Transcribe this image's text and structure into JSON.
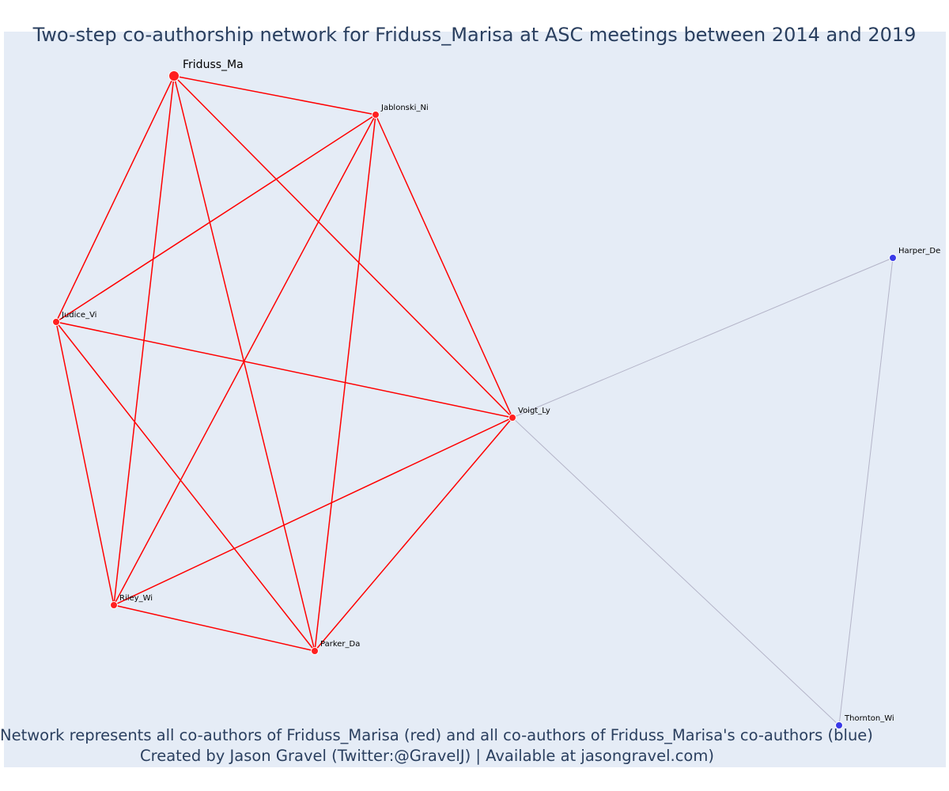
{
  "title": "Two-step co-authorship network for Friduss_Marisa at ASC meetings between 2014 and 2019",
  "caption": {
    "line1": "Network represents all co-authors of Friduss_Marisa (red) and all co-authors of Friduss_Marisa's co-authors (blue)",
    "line2": "Created by Jason Gravel (Twitter:@GravelJ) | Available at jasongravel.com)"
  },
  "colors": {
    "background": "#e5ecf6",
    "primary_edge": "#ff0000",
    "secondary_edge": "#b4b4c8",
    "primary_node": "#ff2020",
    "secondary_node": "#3a3ae8",
    "text": "#2a3f5f"
  },
  "nodes": [
    {
      "id": "Friduss_Ma",
      "group": "focal"
    },
    {
      "id": "Jablonski_Ni",
      "group": "coauthor"
    },
    {
      "id": "Judice_Vi",
      "group": "coauthor"
    },
    {
      "id": "Voigt_Ly",
      "group": "coauthor"
    },
    {
      "id": "Riley_Wi",
      "group": "coauthor"
    },
    {
      "id": "Parker_Da",
      "group": "coauthor"
    },
    {
      "id": "Harper_De",
      "group": "second_step"
    },
    {
      "id": "Thornton_Wi",
      "group": "second_step"
    }
  ],
  "edges": [
    {
      "source": "Friduss_Ma",
      "target": "Jablonski_Ni",
      "type": "primary"
    },
    {
      "source": "Friduss_Ma",
      "target": "Judice_Vi",
      "type": "primary"
    },
    {
      "source": "Friduss_Ma",
      "target": "Voigt_Ly",
      "type": "primary"
    },
    {
      "source": "Friduss_Ma",
      "target": "Riley_Wi",
      "type": "primary"
    },
    {
      "source": "Friduss_Ma",
      "target": "Parker_Da",
      "type": "primary"
    },
    {
      "source": "Jablonski_Ni",
      "target": "Judice_Vi",
      "type": "primary"
    },
    {
      "source": "Jablonski_Ni",
      "target": "Voigt_Ly",
      "type": "primary"
    },
    {
      "source": "Jablonski_Ni",
      "target": "Riley_Wi",
      "type": "primary"
    },
    {
      "source": "Jablonski_Ni",
      "target": "Parker_Da",
      "type": "primary"
    },
    {
      "source": "Judice_Vi",
      "target": "Voigt_Ly",
      "type": "primary"
    },
    {
      "source": "Judice_Vi",
      "target": "Riley_Wi",
      "type": "primary"
    },
    {
      "source": "Judice_Vi",
      "target": "Parker_Da",
      "type": "primary"
    },
    {
      "source": "Voigt_Ly",
      "target": "Riley_Wi",
      "type": "primary"
    },
    {
      "source": "Voigt_Ly",
      "target": "Parker_Da",
      "type": "primary"
    },
    {
      "source": "Riley_Wi",
      "target": "Parker_Da",
      "type": "primary"
    },
    {
      "source": "Voigt_Ly",
      "target": "Harper_De",
      "type": "secondary"
    },
    {
      "source": "Voigt_Ly",
      "target": "Thornton_Wi",
      "type": "secondary"
    },
    {
      "source": "Harper_De",
      "target": "Thornton_Wi",
      "type": "secondary"
    }
  ]
}
